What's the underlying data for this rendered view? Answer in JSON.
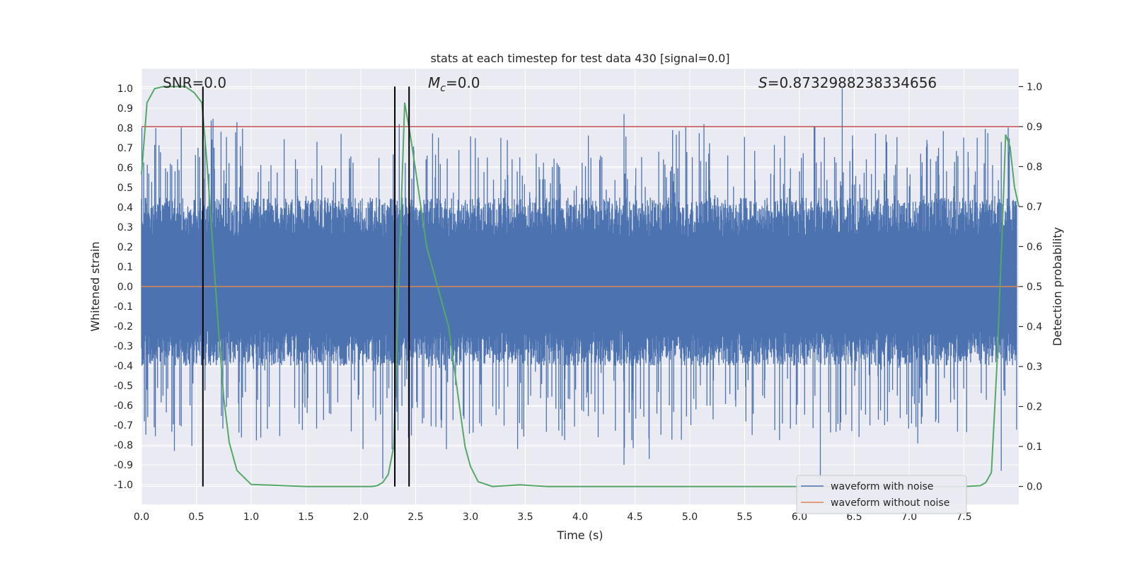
{
  "chart_data": {
    "type": "line",
    "title": "stats at each timestep for test data 430 [signal=0.0]",
    "xlabel": "Time (s)",
    "ylabel": "Whitened strain",
    "y2label": "Detection probability",
    "xlim": [
      0.0,
      8.0
    ],
    "ylim": [
      -1.1,
      1.1
    ],
    "y2lim": [
      -0.045,
      1.045
    ],
    "xticks": [
      "0.0",
      "0.5",
      "1.0",
      "1.5",
      "2.0",
      "2.5",
      "3.0",
      "3.5",
      "4.0",
      "4.5",
      "5.0",
      "5.5",
      "6.0",
      "6.5",
      "7.0",
      "7.5"
    ],
    "xtick_values": [
      0.0,
      0.5,
      1.0,
      1.5,
      2.0,
      2.5,
      3.0,
      3.5,
      4.0,
      4.5,
      5.0,
      5.5,
      6.0,
      6.5,
      7.0,
      7.5
    ],
    "yticks": [
      "1.0",
      "0.9",
      "0.8",
      "0.7",
      "0.6",
      "0.5",
      "0.4",
      "0.3",
      "0.2",
      "0.1",
      "0.0",
      "-0.1",
      "-0.2",
      "-0.3",
      "-0.4",
      "-0.5",
      "-0.6",
      "-0.7",
      "-0.8",
      "-0.9",
      "-1.0"
    ],
    "ytick_values": [
      1.0,
      0.9,
      0.8,
      0.7,
      0.6,
      0.5,
      0.4,
      0.3,
      0.2,
      0.1,
      0.0,
      -0.1,
      -0.2,
      -0.3,
      -0.4,
      -0.5,
      -0.6,
      -0.7,
      -0.8,
      -0.9,
      -1.0
    ],
    "y2ticks": [
      "1.0",
      "0.9",
      "0.8",
      "0.7",
      "0.6",
      "0.5",
      "0.4",
      "0.3",
      "0.2",
      "0.1",
      "0.0"
    ],
    "y2tick_values": [
      1.0,
      0.9,
      0.8,
      0.7,
      0.6,
      0.5,
      0.4,
      0.3,
      0.2,
      0.1,
      0.0
    ],
    "grid": true,
    "background": "#eaeaf2",
    "annotations": {
      "snr": "SNR=0.0",
      "mc_symbol": "M",
      "mc_sub": "c",
      "mc_value": "=0.0",
      "s_symbol": "S",
      "s_value": "=0.8732988238334656"
    },
    "threshold": {
      "value": 0.9,
      "axis": "y2",
      "color": "#c44e52"
    },
    "vertical_lines": [
      0.56,
      2.31,
      2.44
    ],
    "vertical_line_range_y2": [
      0.0,
      1.0
    ],
    "series": [
      {
        "name": "waveform with noise",
        "color": "#4c72b0",
        "axis": "y",
        "description_values": {
          "noise_band": [
            -0.4,
            0.45
          ],
          "max": 1.0,
          "min": -0.97
        },
        "peaks": [
          [
            0.13,
            0.8
          ],
          [
            0.87,
            0.83
          ],
          [
            2.35,
            0.82
          ],
          [
            4.4,
            0.87
          ],
          [
            6.39,
            1.0
          ],
          [
            7.84,
            0.73
          ],
          [
            1.82,
            0.77
          ],
          [
            0.3,
            -0.83
          ],
          [
            2.2,
            -0.97
          ],
          [
            4.4,
            -0.9
          ],
          [
            4.63,
            -0.87
          ],
          [
            6.19,
            -0.97
          ],
          [
            7.84,
            -0.93
          ],
          [
            2.02,
            -0.82
          ]
        ]
      },
      {
        "name": "waveform without noise",
        "color": "#dd8452",
        "axis": "y",
        "values_constant": 0.0
      },
      {
        "name": "",
        "color": "#55a868",
        "axis": "y2",
        "x": [
          0.0,
          0.05,
          0.12,
          0.2,
          0.3,
          0.4,
          0.48,
          0.55,
          0.6,
          0.65,
          0.7,
          0.75,
          0.8,
          0.87,
          1.0,
          1.5,
          2.0,
          2.1,
          2.15,
          2.2,
          2.25,
          2.3,
          2.35,
          2.4,
          2.45,
          2.5,
          2.6,
          2.7,
          2.75,
          2.8,
          2.85,
          2.9,
          2.95,
          3.0,
          3.07,
          3.2,
          3.45,
          3.7,
          4.0,
          5.0,
          6.0,
          7.0,
          7.5,
          7.65,
          7.7,
          7.75,
          7.8,
          7.85,
          7.88,
          7.92,
          7.96,
          8.0
        ],
        "y": [
          0.78,
          0.96,
          0.995,
          1.0,
          1.0,
          1.0,
          0.985,
          0.96,
          0.8,
          0.6,
          0.4,
          0.22,
          0.11,
          0.04,
          0.005,
          0.0,
          0.0,
          0.0,
          0.002,
          0.01,
          0.03,
          0.1,
          0.55,
          0.96,
          0.88,
          0.79,
          0.6,
          0.5,
          0.45,
          0.4,
          0.3,
          0.2,
          0.1,
          0.05,
          0.012,
          0.0,
          0.004,
          0.0,
          0.0,
          0.0,
          0.0,
          0.0,
          0.0,
          0.002,
          0.01,
          0.035,
          0.3,
          0.65,
          0.88,
          0.85,
          0.75,
          0.7
        ]
      }
    ],
    "legend": {
      "placement": "lower-right",
      "entries": [
        "waveform with noise",
        "waveform without noise"
      ]
    }
  }
}
